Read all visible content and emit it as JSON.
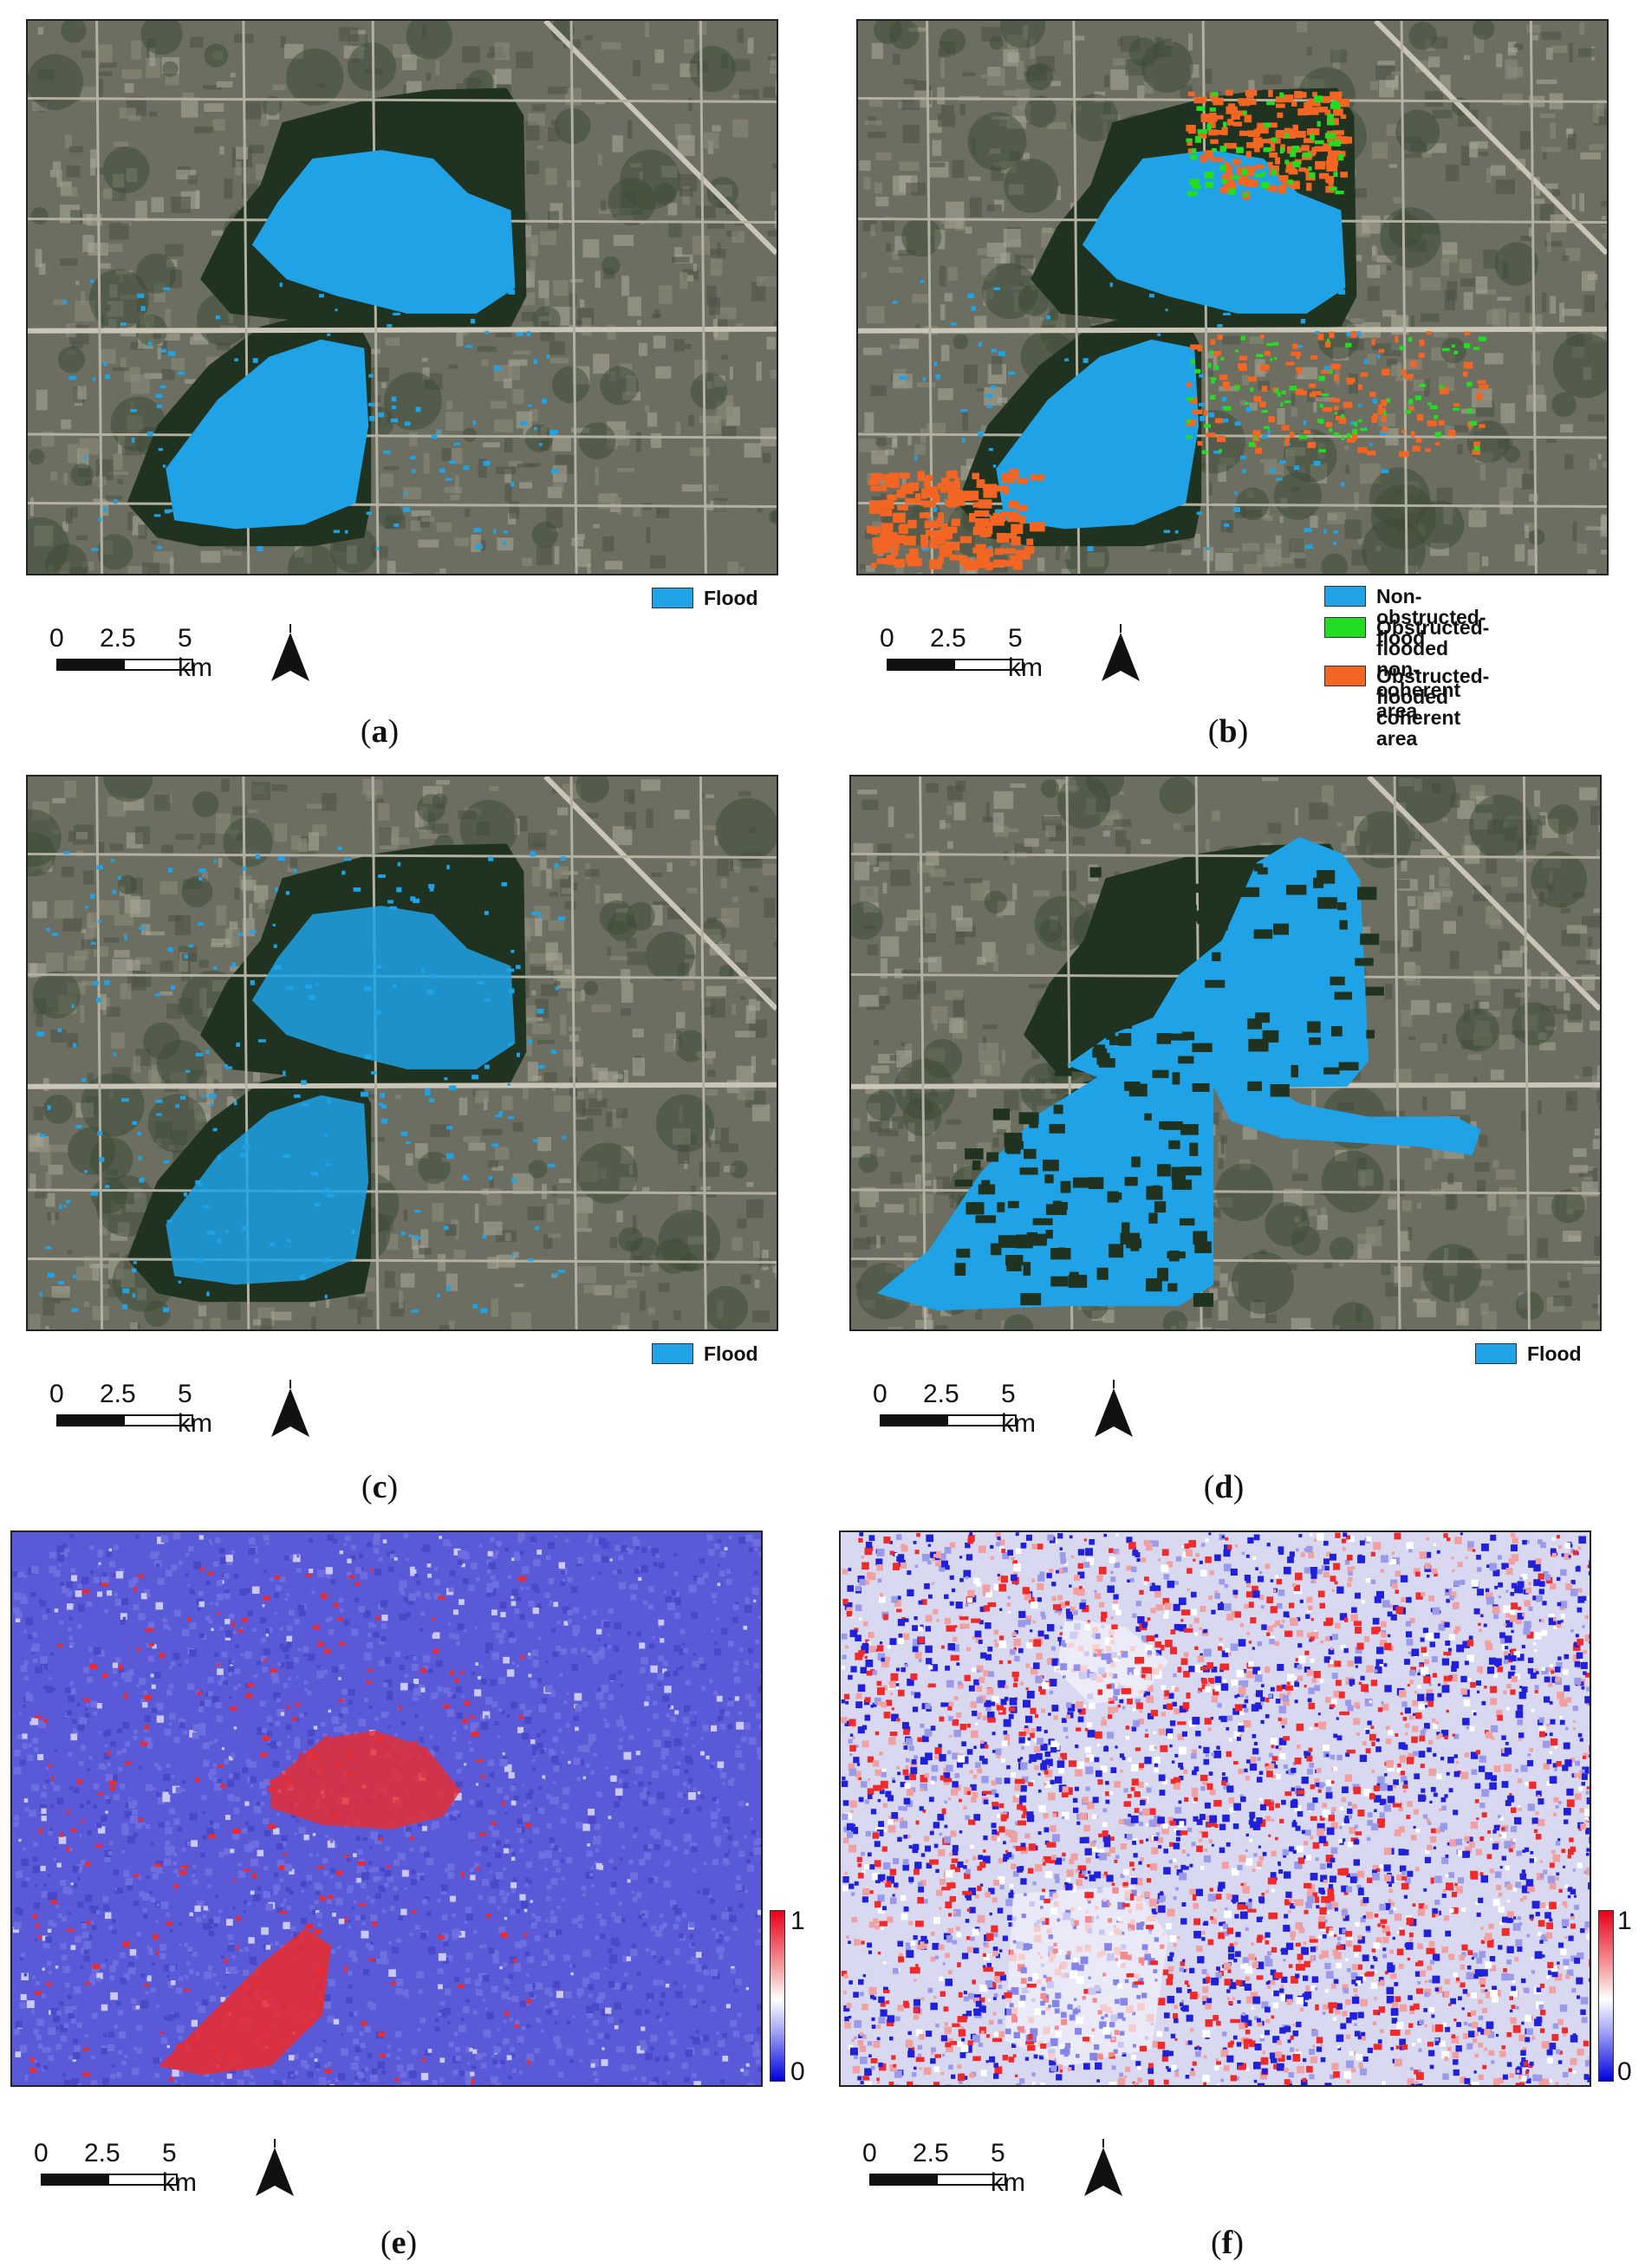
{
  "panels": [
    {
      "id": "a",
      "caption": "a",
      "legend": [
        {
          "label": "Flood",
          "color": "#1fa3e6"
        }
      ],
      "variant": "flood-a"
    },
    {
      "id": "b",
      "caption": "b",
      "legend": [
        {
          "label": "Non-obstructed-flood",
          "color": "#1fa3e6"
        },
        {
          "label": "Obstructed-flooded\nnon-coherent area",
          "color": "#22dd22"
        },
        {
          "label": "Obstructed-flooded\ncoherent area",
          "color": "#f26522"
        }
      ],
      "variant": "flood-b"
    },
    {
      "id": "c",
      "caption": "c",
      "legend": [
        {
          "label": "Flood",
          "color": "#1fa3e6"
        }
      ],
      "variant": "flood-c"
    },
    {
      "id": "d",
      "caption": "d",
      "legend": [
        {
          "label": "Flood",
          "color": "#1fa3e6"
        }
      ],
      "variant": "flood-d"
    },
    {
      "id": "e",
      "caption": "e",
      "colorbar": {
        "max": "1",
        "min": "0"
      },
      "variant": "prob-e"
    },
    {
      "id": "f",
      "caption": "f",
      "colorbar": {
        "max": "1",
        "min": "0"
      },
      "variant": "prob-f"
    }
  ],
  "scalebar": {
    "l0": "0",
    "l1": "2.5",
    "l2": "5 km"
  },
  "colors": {
    "flood": "#1fa3e6",
    "nonCoherent": "#22dd22",
    "coherent": "#f26522",
    "forest": "#1f3320",
    "urban": "#6b6e60",
    "road": "#c9c6b8",
    "probBase": "#5a5ad8",
    "probHigh": "#ee2a2a"
  }
}
